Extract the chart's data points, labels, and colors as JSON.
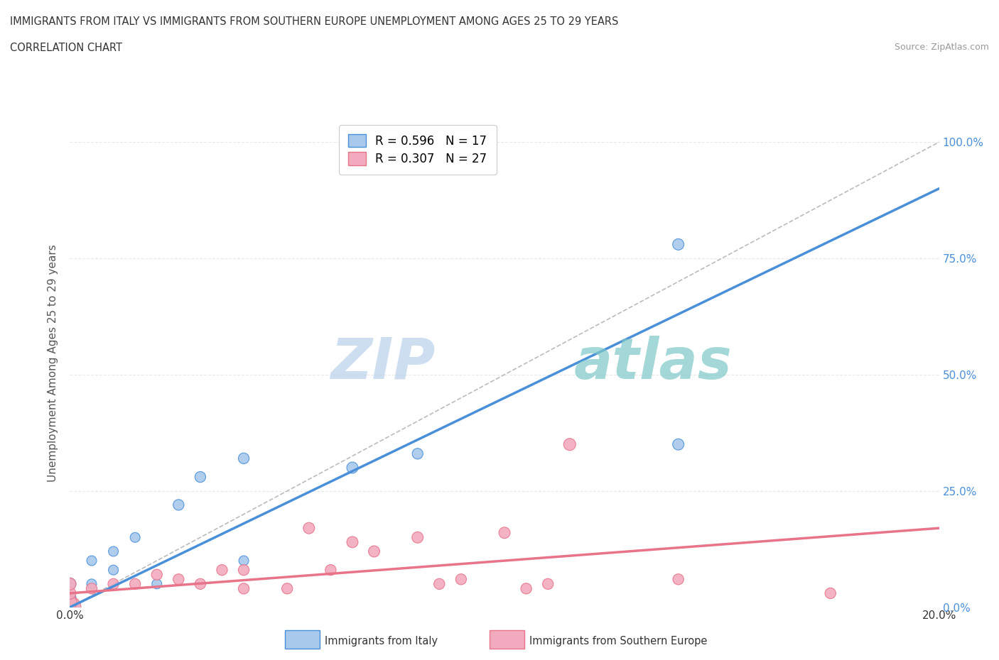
{
  "title_line1": "IMMIGRANTS FROM ITALY VS IMMIGRANTS FROM SOUTHERN EUROPE UNEMPLOYMENT AMONG AGES 25 TO 29 YEARS",
  "title_line2": "CORRELATION CHART",
  "source_text": "Source: ZipAtlas.com",
  "ylabel": "Unemployment Among Ages 25 to 29 years",
  "xlim": [
    0.0,
    0.2
  ],
  "ylim": [
    0.0,
    1.05
  ],
  "ytick_labels_left": [
    "0.0%",
    "25.0%",
    "50.0%",
    "75.0%",
    "100.0%"
  ],
  "ytick_labels_right": [
    "0.0%",
    "25.0%",
    "50.0%",
    "75.0%",
    "100.0%"
  ],
  "ytick_values": [
    0.0,
    0.25,
    0.5,
    0.75,
    1.0
  ],
  "italy_color": "#A8C8EC",
  "southern_color": "#F2ABBE",
  "italy_line_color": "#4A90D9",
  "southern_line_color": "#E8748A",
  "diagonal_line_color": "#BBBBBB",
  "legend_R_italy": "R = 0.596",
  "legend_N_italy": "N = 17",
  "legend_R_southern": "R = 0.307",
  "legend_N_southern": "N = 27",
  "watermark_zip": "ZIP",
  "watermark_atlas": "atlas",
  "italy_x": [
    0.0,
    0.0,
    0.0,
    0.005,
    0.005,
    0.01,
    0.01,
    0.015,
    0.02,
    0.025,
    0.03,
    0.04,
    0.04,
    0.065,
    0.08,
    0.14,
    0.14
  ],
  "italy_y": [
    0.0,
    0.02,
    0.05,
    0.05,
    0.1,
    0.08,
    0.12,
    0.15,
    0.05,
    0.22,
    0.28,
    0.1,
    0.32,
    0.3,
    0.33,
    0.35,
    0.78
  ],
  "italy_size": [
    400,
    150,
    150,
    100,
    100,
    100,
    100,
    100,
    100,
    120,
    120,
    100,
    120,
    130,
    120,
    130,
    130
  ],
  "southern_x": [
    0.0,
    0.0,
    0.0,
    0.0,
    0.005,
    0.01,
    0.015,
    0.02,
    0.025,
    0.03,
    0.035,
    0.04,
    0.04,
    0.05,
    0.055,
    0.06,
    0.065,
    0.07,
    0.08,
    0.085,
    0.09,
    0.1,
    0.105,
    0.11,
    0.115,
    0.14,
    0.175
  ],
  "southern_y": [
    0.0,
    0.01,
    0.03,
    0.05,
    0.04,
    0.05,
    0.05,
    0.07,
    0.06,
    0.05,
    0.08,
    0.04,
    0.08,
    0.04,
    0.17,
    0.08,
    0.14,
    0.12,
    0.15,
    0.05,
    0.06,
    0.16,
    0.04,
    0.05,
    0.35,
    0.06,
    0.03
  ],
  "southern_size": [
    500,
    200,
    150,
    150,
    120,
    120,
    120,
    120,
    120,
    120,
    120,
    120,
    120,
    120,
    130,
    120,
    130,
    130,
    130,
    120,
    120,
    130,
    120,
    120,
    150,
    120,
    120
  ],
  "background_color": "#FFFFFF",
  "grid_color": "#E8E8E8"
}
